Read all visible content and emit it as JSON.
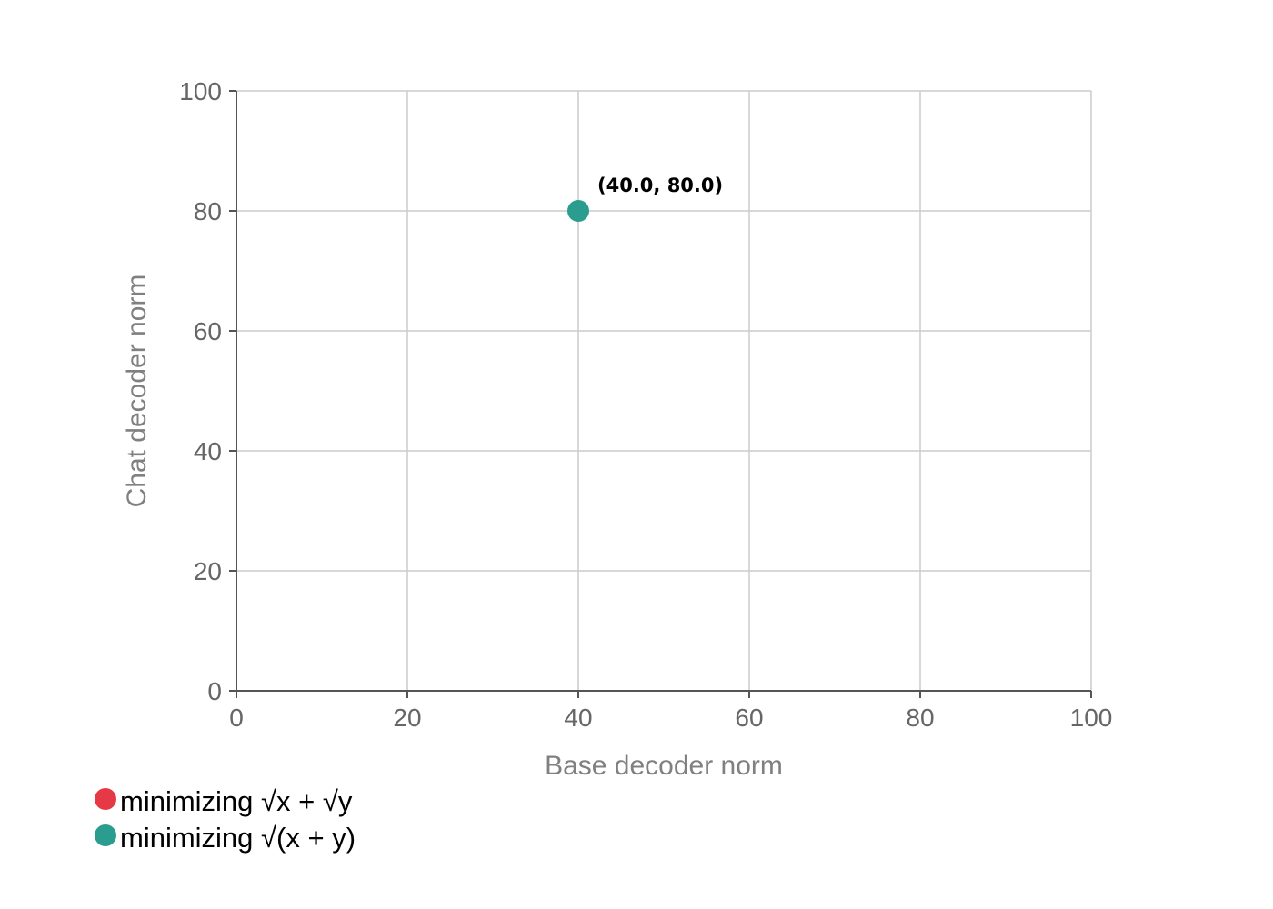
{
  "chart_data": {
    "type": "scatter",
    "xlabel": "Base decoder norm",
    "ylabel": "Chat decoder norm",
    "xlim": [
      0,
      100
    ],
    "ylim": [
      0,
      100
    ],
    "x_ticks": [
      0,
      20,
      40,
      60,
      80,
      100
    ],
    "y_ticks": [
      0,
      20,
      40,
      60,
      80,
      100
    ],
    "grid": true,
    "legend_position": "bottom-left",
    "series": [
      {
        "name": "minimizing √x + √y",
        "color": "#e63946",
        "points": []
      },
      {
        "name": "minimizing √(x + y)",
        "color": "#2a9d8f",
        "points": [
          {
            "x": 40.0,
            "y": 80.0,
            "label": "(40.0, 80.0)"
          }
        ]
      }
    ]
  }
}
